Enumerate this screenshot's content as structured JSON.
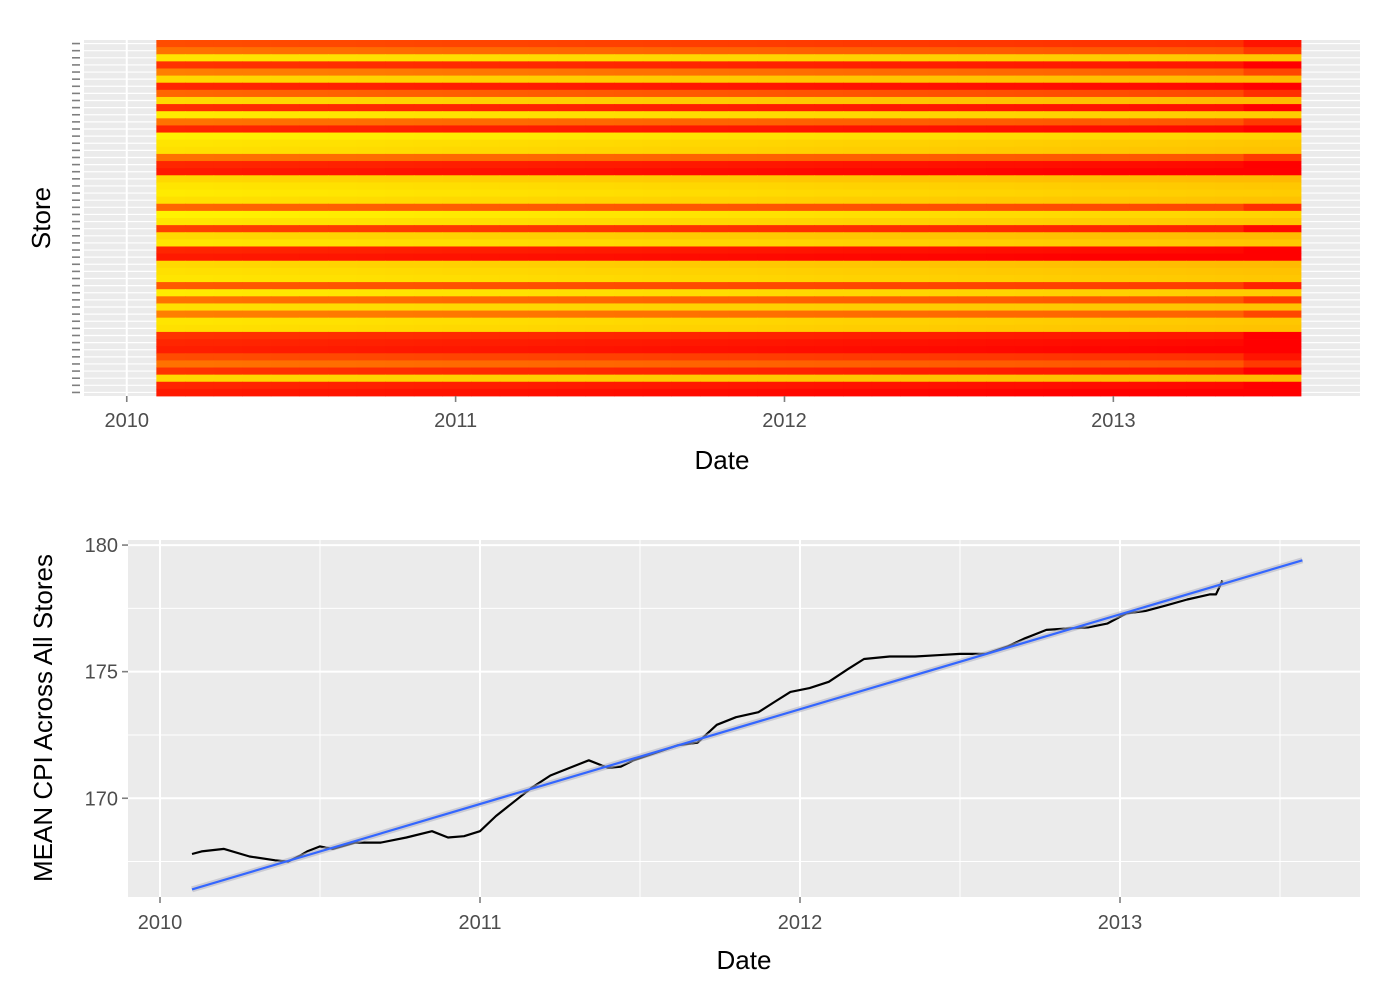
{
  "chart_data": [
    {
      "type": "heatmap",
      "xlabel": "Date",
      "ylabel": "Store",
      "x_ticks": [
        "2010",
        "2011",
        "2012",
        "2013"
      ],
      "x_tick_values": [
        2010.0,
        2011.0,
        2012.0,
        2013.0
      ],
      "xlim": [
        2009.87,
        2013.75
      ],
      "x_start": 2010.09,
      "x_end": 2013.57,
      "x_missing_after": 2013.32,
      "grid": true,
      "legend": "none",
      "colors": {
        "low": "#ff0000",
        "mid": "#ff7f00",
        "high": "#ffff00",
        "panel": "#ebebeb",
        "grid": "#ffffff"
      },
      "rows_level": [
        0.3,
        0.45,
        0.9,
        0.2,
        0.5,
        0.85,
        0.15,
        0.4,
        0.85,
        0.18,
        0.92,
        0.45,
        0.15,
        0.95,
        0.9,
        0.88,
        0.45,
        0.15,
        0.1,
        0.85,
        0.9,
        0.92,
        0.88,
        0.4,
        0.95,
        0.9,
        0.25,
        0.85,
        0.9,
        0.15,
        0.1,
        0.85,
        0.88,
        0.9,
        0.35,
        0.92,
        0.45,
        0.88,
        0.5,
        0.9,
        0.88,
        0.2,
        0.15,
        0.12,
        0.3,
        0.45,
        0.2,
        0.85,
        0.15,
        0.1
      ]
    },
    {
      "type": "line",
      "xlabel": "Date",
      "ylabel": "MEAN CPI Across All Stores",
      "x_ticks": [
        "2010",
        "2011",
        "2012",
        "2013"
      ],
      "x_tick_values": [
        2010.0,
        2011.0,
        2012.0,
        2013.0
      ],
      "y_ticks": [
        "170",
        "175",
        "180"
      ],
      "y_tick_values": [
        170,
        175,
        180
      ],
      "xlim": [
        2009.9,
        2013.75
      ],
      "ylim": [
        166.1,
        180.2
      ],
      "grid": true,
      "legend": "none",
      "series": [
        {
          "style": "line",
          "color": "#000000",
          "x": [
            2010.1,
            2010.13,
            2010.2,
            2010.28,
            2010.36,
            2010.4,
            2010.44,
            2010.46,
            2010.5,
            2010.54,
            2010.61,
            2010.69,
            2010.77,
            2010.85,
            2010.9,
            2010.95,
            2011.0,
            2011.05,
            2011.1,
            2011.16,
            2011.22,
            2011.28,
            2011.34,
            2011.4,
            2011.44,
            2011.48,
            2011.55,
            2011.62,
            2011.68,
            2011.74,
            2011.8,
            2011.87,
            2011.92,
            2011.97,
            2012.03,
            2012.09,
            2012.15,
            2012.2,
            2012.28,
            2012.36,
            2012.43,
            2012.5,
            2012.58,
            2012.65,
            2012.7,
            2012.77,
            2012.83,
            2012.9,
            2012.96,
            2013.02,
            2013.08,
            2013.14,
            2013.21,
            2013.28,
            2013.3,
            2013.32
          ],
          "y": [
            167.8,
            167.9,
            168.0,
            167.7,
            167.55,
            167.5,
            167.75,
            167.9,
            168.1,
            168.0,
            168.25,
            168.25,
            168.45,
            168.7,
            168.45,
            168.5,
            168.7,
            169.3,
            169.8,
            170.4,
            170.9,
            171.2,
            171.5,
            171.2,
            171.25,
            171.5,
            171.8,
            172.1,
            172.2,
            172.9,
            173.2,
            173.4,
            173.8,
            174.2,
            174.35,
            174.6,
            175.1,
            175.5,
            175.6,
            175.6,
            175.65,
            175.7,
            175.7,
            176.0,
            176.3,
            176.65,
            176.7,
            176.75,
            176.9,
            177.3,
            177.4,
            177.6,
            177.85,
            178.05,
            178.05,
            178.6
          ]
        },
        {
          "style": "trend",
          "color": "#3366ff",
          "x": [
            2010.1,
            2013.57
          ],
          "y": [
            166.4,
            179.4
          ]
        }
      ]
    }
  ]
}
